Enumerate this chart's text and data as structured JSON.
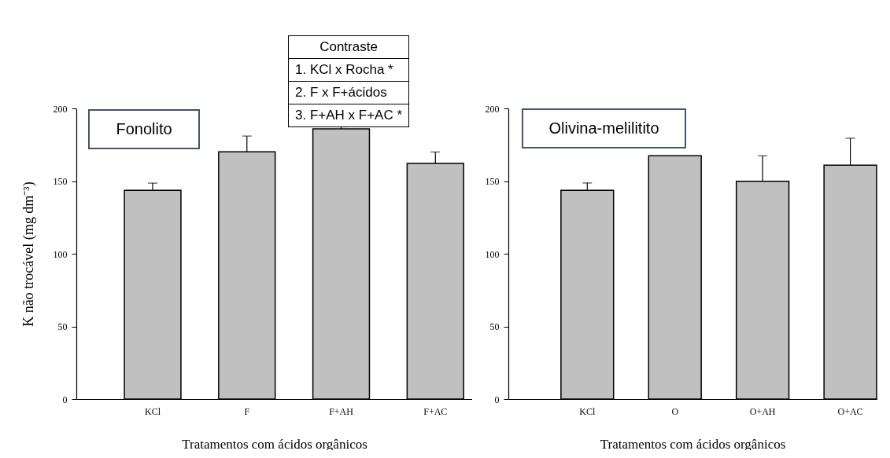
{
  "chart_data": [
    {
      "type": "bar",
      "xlabel": "Tratamentos com ácidos orgânicos",
      "ylabel": "K não trocável (mg dm⁻³)",
      "categories": [
        "KCl",
        "F",
        "F+AH",
        "F+AC"
      ],
      "series": [
        {
          "color": "#c0c0c0",
          "values": [
            143.7,
            170.2,
            186,
            162.1
          ],
          "errors": [
            [
              143.7,
              148.6
            ],
            [
              170.2,
              181
            ],
            [
              186,
              187.3
            ],
            [
              162.1,
              170
            ]
          ]
        }
      ],
      "ylim": [
        0,
        200
      ],
      "yticks": [
        0,
        50,
        100,
        150,
        200
      ],
      "grid": false,
      "annotations": [
        "Fonolito",
        "Contraste",
        "1. KCl x Rocha *",
        "2. F x F+ácidos",
        "3. F+AH x F+AC *"
      ]
    },
    {
      "type": "bar",
      "xlabel": "Tratamentos com ácidos orgânicos",
      "categories": [
        "KCl",
        "O",
        "O+AH",
        "O+AC"
      ],
      "series": [
        {
          "color": "#c0c0c0",
          "values": [
            143.7,
            167.4,
            149.8,
            160.9
          ],
          "errors": [
            [
              143.7,
              148.7
            ],
            null,
            [
              149.8,
              167.4
            ],
            [
              160.9,
              179.5
            ]
          ]
        }
      ],
      "ylim": [
        0,
        200
      ],
      "yticks": [
        0,
        50,
        100,
        150,
        200
      ],
      "grid": false,
      "annotations": [
        "Olivina-melilitito"
      ]
    }
  ]
}
